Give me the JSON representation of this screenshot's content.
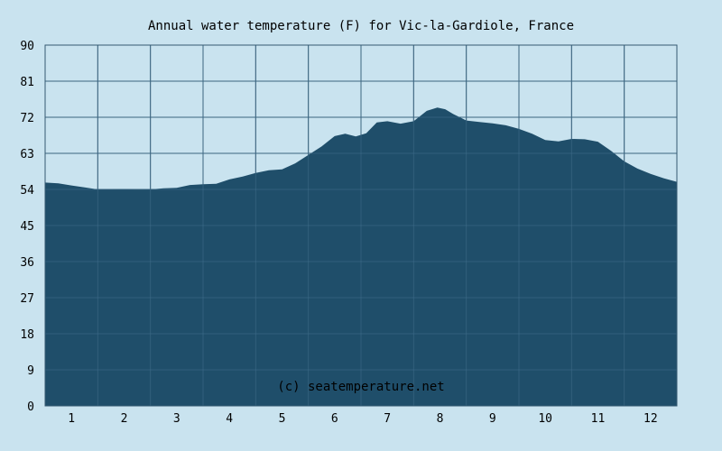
{
  "colors": {
    "background": "#c9e3ef",
    "plot_background": "#c9e3ef",
    "area_fill": "#1f4e6a",
    "grid": "#355a72",
    "text": "#000000",
    "watermark": "#ffffff"
  },
  "chart_data": {
    "type": "area",
    "title": "Annual water temperature (F) for Vic-la-Gardiole, France",
    "xlabel": "",
    "ylabel": "",
    "watermark": "(c) seatemperature.net",
    "xlim": [
      0.5,
      12.5
    ],
    "ylim": [
      0,
      90
    ],
    "x_ticks": [
      1,
      2,
      3,
      4,
      5,
      6,
      7,
      8,
      9,
      10,
      11,
      12
    ],
    "x_tick_labels": [
      "1",
      "2",
      "3",
      "4",
      "5",
      "6",
      "7",
      "8",
      "9",
      "10",
      "11",
      "12"
    ],
    "y_ticks": [
      0,
      9,
      18,
      27,
      36,
      45,
      54,
      63,
      72,
      81,
      90
    ],
    "y_tick_labels": [
      "0",
      "9",
      "18",
      "27",
      "36",
      "45",
      "54",
      "63",
      "72",
      "81",
      "90"
    ],
    "grid": true,
    "legend": "none",
    "series": [
      {
        "x": [
          0.5,
          0.75,
          1.0,
          1.25,
          1.5,
          1.75,
          2.0,
          2.25,
          2.5,
          2.75,
          3.0,
          3.25,
          3.5,
          3.75,
          4.0,
          4.25,
          4.5,
          4.75,
          5.0,
          5.25,
          5.5,
          5.75,
          6.0,
          6.2,
          6.4,
          6.6,
          6.8,
          7.0,
          7.25,
          7.5,
          7.75,
          7.95,
          8.1,
          8.25,
          8.5,
          8.75,
          9.0,
          9.25,
          9.5,
          9.75,
          10.0,
          10.25,
          10.5,
          10.75,
          11.0,
          11.25,
          11.5,
          11.75,
          12.0,
          12.25,
          12.5
        ],
        "y": [
          55.7,
          55.5,
          55.0,
          54.5,
          54.0,
          54.0,
          54.1,
          53.9,
          54.0,
          54.3,
          54.4,
          55.1,
          55.3,
          55.4,
          56.5,
          57.2,
          58.1,
          58.8,
          59.0,
          60.5,
          62.6,
          64.7,
          67.3,
          67.9,
          67.2,
          68.0,
          70.7,
          71.0,
          70.4,
          71.0,
          73.6,
          74.4,
          74.0,
          72.8,
          71.2,
          70.8,
          70.5,
          70.0,
          69.1,
          67.9,
          66.3,
          66.0,
          66.6,
          66.5,
          65.9,
          63.6,
          61.0,
          59.2,
          57.9,
          56.8,
          55.9
        ]
      }
    ]
  }
}
